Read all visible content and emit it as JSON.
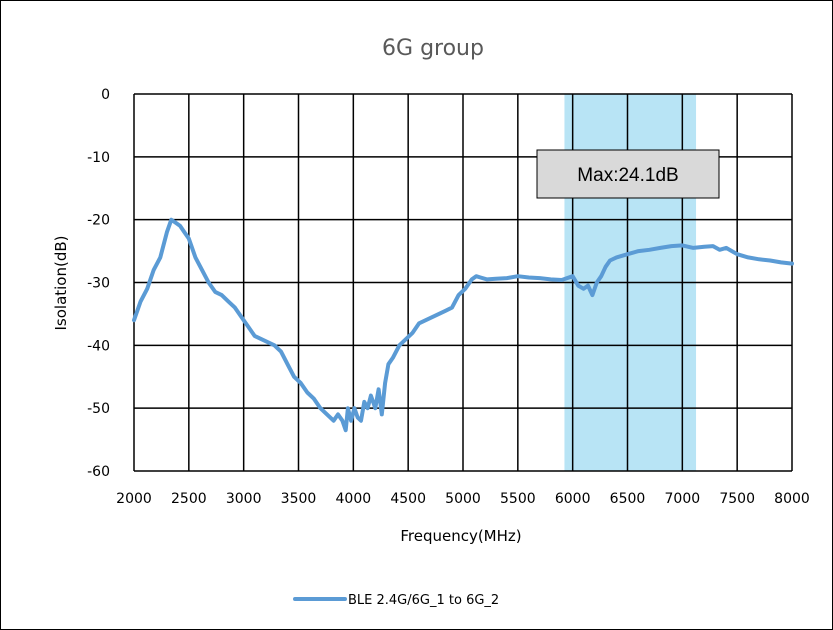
{
  "chart_data": {
    "type": "line",
    "title": "6G group",
    "xlabel": "Frequency(MHz)",
    "ylabel": "Isolation(dB)",
    "xlim": [
      2000,
      8000
    ],
    "ylim": [
      -60,
      0
    ],
    "x_ticks": [
      2000,
      2500,
      3000,
      3500,
      4000,
      4500,
      5000,
      5500,
      6000,
      6500,
      7000,
      7500,
      8000
    ],
    "y_ticks": [
      0,
      -10,
      -20,
      -30,
      -40,
      -50,
      -60
    ],
    "grid": true,
    "legend_position": "bottom",
    "highlight_band": {
      "x_start": 5925,
      "x_end": 7125,
      "color": "#b8e4f5"
    },
    "annotation": "Max:24.1dB",
    "series": [
      {
        "name": "BLE 2.4G/6G_1 to 6G_2",
        "color": "#5b9bd5",
        "x": [
          2000,
          2060,
          2120,
          2180,
          2240,
          2300,
          2340,
          2380,
          2420,
          2460,
          2500,
          2560,
          2620,
          2680,
          2740,
          2800,
          2860,
          2920,
          2980,
          3040,
          3100,
          3160,
          3220,
          3280,
          3340,
          3400,
          3460,
          3520,
          3580,
          3640,
          3700,
          3760,
          3820,
          3860,
          3900,
          3930,
          3950,
          3980,
          4010,
          4040,
          4070,
          4100,
          4130,
          4160,
          4200,
          4230,
          4260,
          4290,
          4320,
          4360,
          4420,
          4480,
          4540,
          4600,
          4660,
          4720,
          4780,
          4840,
          4900,
          4960,
          5020,
          5080,
          5120,
          5160,
          5220,
          5300,
          5400,
          5500,
          5600,
          5700,
          5800,
          5900,
          6000,
          6050,
          6100,
          6140,
          6180,
          6220,
          6260,
          6300,
          6340,
          6400,
          6500,
          6600,
          6700,
          6800,
          6900,
          7000,
          7100,
          7200,
          7280,
          7340,
          7400,
          7500,
          7600,
          7700,
          7800,
          7900,
          8000
        ],
        "y": [
          -36,
          -33,
          -31,
          -28,
          -26,
          -22,
          -20,
          -20.5,
          -21,
          -22,
          -23,
          -26,
          -28,
          -30,
          -31.5,
          -32,
          -33,
          -34,
          -35.5,
          -37,
          -38.5,
          -39,
          -39.5,
          -40,
          -41,
          -43,
          -45,
          -46,
          -47.5,
          -48.5,
          -50,
          -51,
          -52,
          -51,
          -52,
          -53.5,
          -50,
          -52,
          -50,
          -51.5,
          -52,
          -49,
          -50,
          -48,
          -50,
          -47,
          -51,
          -46,
          -43,
          -42,
          -40,
          -39,
          -38,
          -36.5,
          -36,
          -35.5,
          -35,
          -34.5,
          -34,
          -32,
          -31,
          -29.5,
          -29,
          -29.2,
          -29.5,
          -29.4,
          -29.3,
          -29,
          -29.2,
          -29.3,
          -29.5,
          -29.6,
          -29,
          -30.5,
          -31,
          -30.5,
          -32,
          -30,
          -29,
          -27.5,
          -26.5,
          -26,
          -25.5,
          -25,
          -24.8,
          -24.5,
          -24.2,
          -24.1,
          -24.5,
          -24.3,
          -24.2,
          -24.8,
          -24.5,
          -25.5,
          -26,
          -26.3,
          -26.5,
          -26.8,
          -27
        ]
      }
    ]
  }
}
